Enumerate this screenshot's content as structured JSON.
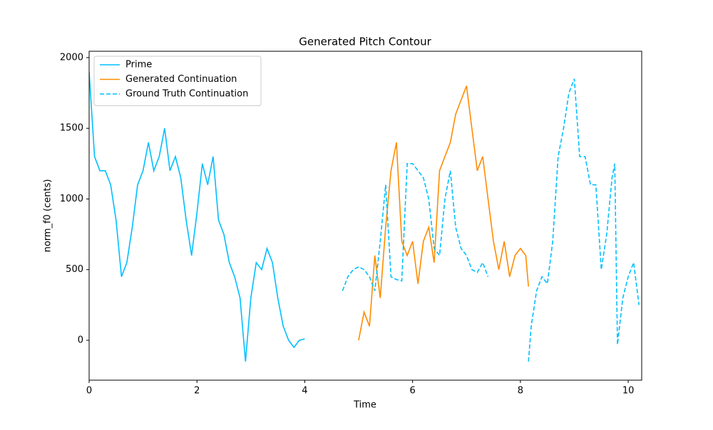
{
  "chart_data": {
    "type": "line",
    "title": "Generated Pitch Contour",
    "x_label": "Time",
    "y_label": "norm_f0 (cents)",
    "xlim": [
      0,
      10.25
    ],
    "ylim": [
      -282,
      2045
    ],
    "xticks": [
      0,
      2,
      4,
      6,
      8,
      10
    ],
    "yticks": [
      0,
      500,
      1000,
      1500,
      2000
    ],
    "legend": "upper left",
    "grid": false,
    "series": [
      {
        "name": "Prime",
        "color": "#00bfff",
        "linestyle": "solid",
        "x": [
          0,
          0.1,
          0.2,
          0.3,
          0.4,
          0.5,
          0.6,
          0.7,
          0.8,
          0.9,
          1.0,
          1.1,
          1.2,
          1.3,
          1.4,
          1.5,
          1.6,
          1.7,
          1.8,
          1.9,
          2.0,
          2.1,
          2.2,
          2.3,
          2.4,
          2.5,
          2.6,
          2.7,
          2.8,
          2.9,
          3.0,
          3.1,
          3.2,
          3.3,
          3.4,
          3.5,
          3.6,
          3.7,
          3.8,
          3.9,
          4.0
        ],
        "values": [
          1900,
          1300,
          1200,
          1200,
          1100,
          850,
          450,
          550,
          800,
          1100,
          1200,
          1400,
          1200,
          1300,
          1500,
          1200,
          1300,
          1150,
          850,
          600,
          900,
          1250,
          1100,
          1300,
          850,
          750,
          550,
          450,
          300,
          -150,
          300,
          550,
          500,
          650,
          550,
          300,
          100,
          0,
          -50,
          0,
          10
        ]
      },
      {
        "name": "Generated Continuation",
        "color": "#ff8c00",
        "linestyle": "solid",
        "x": [
          5.0,
          5.1,
          5.2,
          5.3,
          5.4,
          5.5,
          5.6,
          5.7,
          5.8,
          5.9,
          6.0,
          6.1,
          6.2,
          6.3,
          6.4,
          6.5,
          6.6,
          6.7,
          6.8,
          6.9,
          7.0,
          7.1,
          7.2,
          7.3,
          7.4,
          7.5,
          7.6,
          7.7,
          7.8,
          7.9,
          8.0,
          8.1,
          8.15
        ],
        "values": [
          0,
          200,
          100,
          600,
          300,
          800,
          1200,
          1400,
          700,
          600,
          700,
          400,
          700,
          800,
          550,
          1200,
          1300,
          1400,
          1600,
          1700,
          1800,
          1500,
          1200,
          1300,
          1000,
          700,
          500,
          700,
          450,
          600,
          650,
          600,
          380
        ]
      },
      {
        "name": "Ground Truth Continuation",
        "color": "#00bfff",
        "linestyle": "dashed",
        "x": [
          4.7,
          4.8,
          4.9,
          5.0,
          5.1,
          5.2,
          5.3,
          5.4,
          5.5,
          5.6,
          5.7,
          5.8,
          5.9,
          6.0,
          6.1,
          6.2,
          6.3,
          6.4,
          6.5,
          6.6,
          6.7,
          6.8,
          6.9,
          7.0,
          7.1,
          7.2,
          7.3,
          7.4,
          7.8,
          8.15,
          8.2,
          8.3,
          8.4,
          8.5,
          8.6,
          8.7,
          8.8,
          8.9,
          9.0,
          9.1,
          9.2,
          9.3,
          9.4,
          9.5,
          9.6,
          9.7,
          9.75,
          9.8,
          9.9,
          10.0,
          10.1,
          10.2
        ],
        "values": [
          350,
          450,
          500,
          520,
          500,
          450,
          350,
          700,
          1100,
          450,
          430,
          420,
          1250,
          1250,
          1200,
          1150,
          1000,
          650,
          600,
          1000,
          1200,
          800,
          650,
          600,
          500,
          480,
          550,
          450,
          null,
          -150,
          100,
          350,
          450,
          400,
          700,
          1300,
          1500,
          1750,
          1850,
          1300,
          1300,
          1100,
          1100,
          500,
          750,
          1150,
          1250,
          -30,
          300,
          450,
          550,
          250
        ]
      }
    ]
  }
}
